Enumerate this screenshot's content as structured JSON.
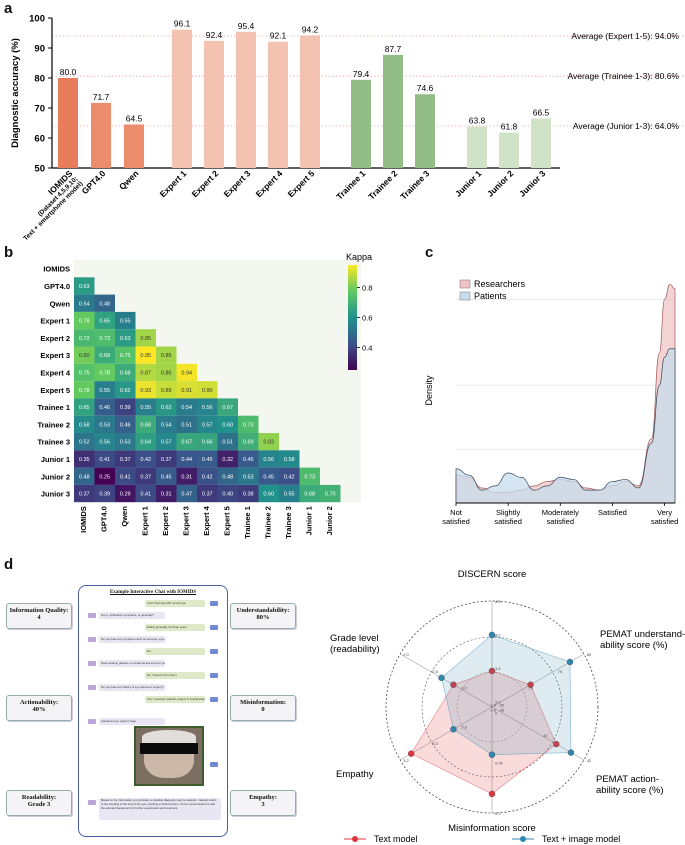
{
  "panel_letters": {
    "a": "a",
    "b": "b",
    "c": "c",
    "d": "d"
  },
  "colors": {
    "iomids": "#e97d5b",
    "llm": "#ec8c6c",
    "expert": "#f4c2b0",
    "trainee": "#93bd86",
    "junior": "#d0e3c6",
    "researchers": "#f0c4c6",
    "patients": "#c7dcec",
    "text_model": "#e0353b",
    "image_model": "#2f86b0"
  },
  "chart_data": [
    {
      "type": "bar",
      "title": "",
      "ylabel": "Diagnostic accuracy (%)",
      "ylim": [
        50,
        100
      ],
      "yticks": [
        50,
        60,
        70,
        80,
        90,
        100
      ],
      "categories": [
        "IOMIDS\n(Dataset 4,5,9,10;\nText + smartphone model)",
        "GPT4.0",
        "Qwen",
        "Expert 1",
        "Expert 2",
        "Expert 3",
        "Expert 4",
        "Expert 5",
        "Trainee 1",
        "Trainee 2",
        "Trainee 3",
        "Junior 1",
        "Junior 2",
        "Junior 3"
      ],
      "category_lines": [
        [
          "IOMIDS",
          "(Dataset 4,5,9,10;",
          "Text + smartphone model)"
        ],
        [
          "GPT4.0"
        ],
        [
          "Qwen"
        ],
        [
          "Expert 1"
        ],
        [
          "Expert 2"
        ],
        [
          "Expert 3"
        ],
        [
          "Expert 4"
        ],
        [
          "Expert 5"
        ],
        [
          "Trainee 1"
        ],
        [
          "Trainee 2"
        ],
        [
          "Trainee 3"
        ],
        [
          "Junior 1"
        ],
        [
          "Junior 2"
        ],
        [
          "Junior 3"
        ]
      ],
      "groups": [
        "iomids",
        "llm",
        "llm",
        "expert",
        "expert",
        "expert",
        "expert",
        "expert",
        "trainee",
        "trainee",
        "trainee",
        "junior",
        "junior",
        "junior"
      ],
      "values": [
        80.0,
        71.7,
        64.5,
        96.1,
        92.4,
        95.4,
        92.1,
        94.2,
        79.4,
        87.7,
        74.6,
        63.8,
        61.8,
        66.5
      ],
      "value_labels": [
        "80.0",
        "71.7",
        "64.5",
        "96.1",
        "92.4",
        "95.4",
        "92.1",
        "94.2",
        "79.4",
        "87.7",
        "74.6",
        "63.8",
        "61.8",
        "66.5"
      ],
      "reference_lines": [
        {
          "label": "Average (Expert 1-5): 94.0%",
          "value": 94.0
        },
        {
          "label": "Average (Trainee 1-3): 80.6%",
          "value": 80.6
        },
        {
          "label": "Average (Junior 1-3): 64.0%",
          "value": 64.0
        }
      ]
    },
    {
      "type": "heatmap",
      "title": "",
      "labels": [
        "IOMIDS",
        "GPT4.0",
        "Qwen",
        "Expert 1",
        "Expert 2",
        "Expert 3",
        "Expert 4",
        "Expert 5",
        "Trainee 1",
        "Trainee 2",
        "Trainee 3",
        "Junior 1",
        "Junior 2",
        "Junior 3"
      ],
      "x_labels": [
        "IOMIDS",
        "GPT4.0",
        "Qwen",
        "Expert 1",
        "Expert 2",
        "Expert 3",
        "Expert 4",
        "Expert 5",
        "Trainee 1",
        "Trainee 2",
        "Trainee 3",
        "Junior 1",
        "Junior 2"
      ],
      "values": [
        [],
        [
          0.63
        ],
        [
          0.54,
          0.48
        ],
        [
          0.78,
          0.65,
          0.55
        ],
        [
          0.72,
          0.73,
          0.63,
          0.85
        ],
        [
          0.8,
          0.68,
          0.75,
          0.95,
          0.85
        ],
        [
          0.75,
          0.78,
          0.68,
          0.87,
          0.85,
          0.94
        ],
        [
          0.78,
          0.55,
          0.62,
          0.93,
          0.89,
          0.91,
          0.9
        ],
        [
          0.65,
          0.46,
          0.39,
          0.55,
          0.62,
          0.54,
          0.56,
          0.67
        ],
        [
          0.58,
          0.53,
          0.46,
          0.68,
          0.54,
          0.51,
          0.57,
          0.6,
          0.73
        ],
        [
          0.52,
          0.56,
          0.53,
          0.64,
          0.57,
          0.67,
          0.66,
          0.51,
          0.69,
          0.83
        ],
        [
          0.35,
          0.41,
          0.37,
          0.42,
          0.37,
          0.44,
          0.45,
          0.32,
          0.45,
          0.56,
          0.58
        ],
        [
          0.48,
          0.25,
          0.41,
          0.37,
          0.45,
          0.31,
          0.42,
          0.48,
          0.53,
          0.45,
          0.42,
          0.73
        ],
        [
          0.37,
          0.39,
          0.29,
          0.41,
          0.31,
          0.47,
          0.37,
          0.4,
          0.38,
          0.6,
          0.55,
          0.68,
          0.7
        ]
      ],
      "colorbar": {
        "label": "Kappa",
        "ticks": [
          0.4,
          0.6,
          0.8
        ],
        "range": [
          0.25,
          0.95
        ]
      }
    },
    {
      "type": "area",
      "title": "",
      "ylabel": "Density",
      "x_categories": [
        "Not satisfied",
        "Slightly satisfied",
        "Moderately satisfied",
        "Satisfied",
        "Very satisfied"
      ],
      "x_category_lines": [
        [
          "Not",
          "satisfied"
        ],
        [
          "Slightly",
          "satisfied"
        ],
        [
          "Moderately",
          "satisfied"
        ],
        [
          "Satisfied"
        ],
        [
          "Very",
          "satisfied"
        ]
      ],
      "legend_position": "top-left",
      "series": [
        {
          "name": "Researchers",
          "color_key": "researchers",
          "x": [
            0.0,
            0.25,
            0.5,
            0.75,
            1.0,
            1.25,
            1.5,
            1.75,
            2.0,
            2.25,
            2.5,
            2.75,
            3.0,
            3.25,
            3.5,
            3.75,
            3.9,
            4.0,
            4.1,
            4.2
          ],
          "y": [
            0.13,
            0.12,
            0.07,
            0.05,
            0.05,
            0.06,
            0.08,
            0.1,
            0.11,
            0.1,
            0.07,
            0.06,
            0.08,
            0.1,
            0.08,
            0.3,
            0.7,
            0.95,
            1.02,
            1.0
          ]
        },
        {
          "name": "Patients",
          "color_key": "patients",
          "x": [
            0.0,
            0.25,
            0.5,
            0.75,
            1.0,
            1.25,
            1.5,
            1.75,
            2.0,
            2.25,
            2.5,
            2.75,
            3.0,
            3.25,
            3.5,
            3.75,
            3.9,
            4.0,
            4.1,
            4.2
          ],
          "y": [
            0.16,
            0.13,
            0.06,
            0.08,
            0.14,
            0.12,
            0.06,
            0.08,
            0.12,
            0.11,
            0.06,
            0.06,
            0.1,
            0.11,
            0.07,
            0.28,
            0.55,
            0.68,
            0.72,
            0.72
          ]
        }
      ]
    },
    {
      "type": "radar",
      "title": "",
      "axes": [
        "DISCERN score",
        "PEMAT understand-\nability score (%)",
        "PEMAT action-\nability score (%)",
        "Misinformation score",
        "Empathy",
        "Grade level\n(readability)"
      ],
      "axis_lines": [
        [
          "DISCERN score"
        ],
        [
          "PEMAT understand-",
          "ability score (%)"
        ],
        [
          "PEMAT action-",
          "ability score (%)"
        ],
        [
          "Misinformation score"
        ],
        [
          "Empathy"
        ],
        [
          "Grade level",
          "(readability)"
        ]
      ],
      "axis_ticks": [
        [
          "3.0",
          "3.5",
          "4.0",
          "4.5"
        ],
        [
          "65",
          "70",
          "75",
          "80"
        ],
        [
          "38",
          "40",
          "42"
        ],
        [
          "0",
          "0.05",
          "0.1"
        ],
        [
          "2.6",
          "2.8",
          "3.0",
          "3.2"
        ],
        [
          "3.5",
          "3.0",
          "2.5",
          "2.0"
        ]
      ],
      "series": [
        {
          "name": "Text model",
          "color_key": "text_model",
          "values": [
            0.34,
            0.42,
            0.7,
            0.82,
            0.88,
            0.42
          ]
        },
        {
          "name": "Text + image model",
          "color_key": "image_model",
          "values": [
            0.68,
            0.85,
            0.86,
            0.45,
            0.42,
            0.55
          ]
        }
      ]
    }
  ],
  "chat": {
    "title": "Example Interactive Chat with IOMIDS",
    "user_tag": "user",
    "bot_tag": "bot",
    "messages": [
      {
        "role": "user",
        "text": "I don't feel well with my left eye."
      },
      {
        "role": "bot",
        "text": "Got it, ophthalmic symptoms, or generally?"
      },
      {
        "role": "user",
        "text": "Mainly generally, for three years."
      },
      {
        "role": "bot",
        "text": "Do you have any symptoms such as red eyes, eye pain, dry eyes and tearing?"
      },
      {
        "role": "user",
        "text": "No."
      },
      {
        "role": "bot",
        "text": "Does wearing glasses or contact lenses improve your vision?"
      },
      {
        "role": "user",
        "text": "No, I haven't worn them."
      },
      {
        "role": "bot",
        "text": "Do you have any history of eye trauma or surgery?"
      },
      {
        "role": "user",
        "text": "Yes, I received cataract surgery in hospital last year."
      },
      {
        "role": "bot",
        "text": "Upload an eye region image."
      },
      {
        "role": "bot",
        "text": "Based on the information you provided, a possible diagnosis may be cataract. Cataract refers to the clouding of the lens of the eye, resulting in blurred vision. You're recommended to visit the relevant department for further examination and treatment."
      }
    ],
    "labels": {
      "information_quality": "Information Quality:\n4",
      "actionability": "Actionability:\n40%",
      "readability": "Readability:\nGrade 3",
      "understandability": "Understandability:\n80%",
      "misinformation": "Misinformation:\n0",
      "empathy": "Empathy:\n3"
    }
  }
}
